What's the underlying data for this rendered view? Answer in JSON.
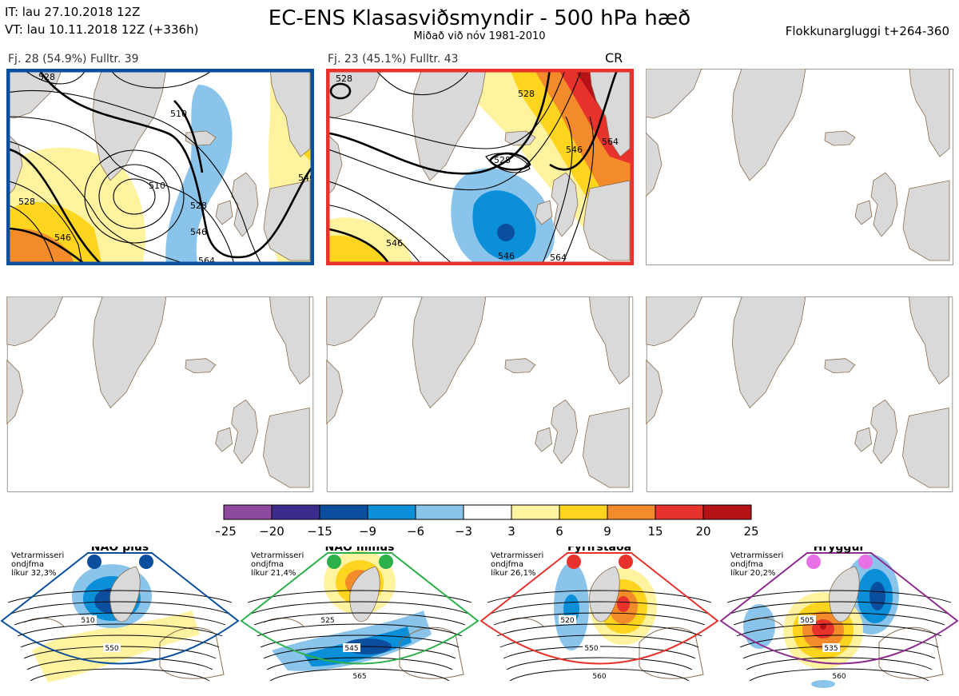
{
  "header": {
    "it_line": "IT: lau 27.10.2018 12Z",
    "vt_line": "VT: lau 10.11.2018 12Z  (+336h)",
    "title": "EC-ENS Klasasviðsmyndir - 500 hPa hæð",
    "subtitle": "Miðað við nóv 1981-2010",
    "window": "Flokkunargluggi t+264-360"
  },
  "panels": [
    {
      "label": "Fj. 28 (54.9%)   Fulltr. 39",
      "border": "#0a4f9e"
    },
    {
      "label": "Fj. 23 (45.1%)   Fulltr. 43",
      "border": "#e8332d",
      "tag": "CR"
    }
  ],
  "contour_labels_p1": [
    "528",
    "510",
    "528",
    "546",
    "546",
    "564",
    "510",
    "528",
    "546"
  ],
  "contour_labels_p2": [
    "528",
    "528",
    "546",
    "564",
    "546",
    "546",
    "528",
    "564"
  ],
  "colors": {
    "land": "#d9d9d9",
    "coast": "#8a6d4e",
    "blue": "#0a4f9e",
    "red": "#e8332d",
    "green": "#2bb04a",
    "purple": "#8e2b8e"
  },
  "chart_data": {
    "type": "heatmap",
    "title": "EC-ENS Klasasviðsmyndir - 500 hPa hæð",
    "legend": {
      "ticks": [
        "−25",
        "−20",
        "−15",
        "−9",
        "−6",
        "−3",
        "3",
        "6",
        "9",
        "15",
        "20",
        "25"
      ],
      "colors": [
        "#8e4a9e",
        "#3c2a8c",
        "#0a4f9e",
        "#0a8fd8",
        "#8ac4ea",
        "#ffffff",
        "#fff3a0",
        "#fdd41e",
        "#f48b2a",
        "#e8332d",
        "#b51317"
      ]
    },
    "regimes": [
      {
        "name": "NAO plús",
        "note": [
          "Vetrarmisseri",
          "ondjfma",
          "líkur 32,3%"
        ],
        "color": "#0a4f9e",
        "labels": [
          "510",
          "550"
        ]
      },
      {
        "name": "NAO mínus",
        "note": [
          "Vetrarmisseri",
          "ondjfma",
          "líkur 21,4%"
        ],
        "color": "#2bb04a",
        "labels": [
          "525",
          "545",
          "565"
        ]
      },
      {
        "name": "Fyrirstaða",
        "note": [
          "Vetrarmisseri",
          "ondjfma",
          "líkur 26,1%"
        ],
        "color": "#e8332d",
        "labels": [
          "520",
          "550",
          "560"
        ]
      },
      {
        "name": "Hryggur",
        "note": [
          "Vetrarmisseri",
          "ondjfma",
          "líkur 20,2%"
        ],
        "color": "#8e2b8e",
        "labels": [
          "505",
          "535",
          "560"
        ]
      }
    ]
  }
}
